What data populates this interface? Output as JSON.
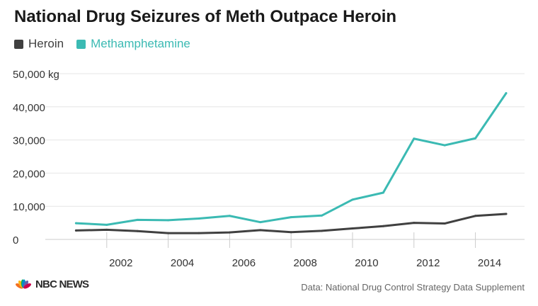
{
  "chart_data": {
    "type": "line",
    "title": "National Drug Seizures of Meth Outpace Heroin",
    "x": [
      2001,
      2002,
      2003,
      2004,
      2005,
      2006,
      2007,
      2008,
      2009,
      2010,
      2011,
      2012,
      2013,
      2014,
      2015
    ],
    "series": [
      {
        "name": "Heroin",
        "color": "#404040",
        "values": [
          2700,
          2900,
          2500,
          1900,
          1900,
          2100,
          2800,
          2200,
          2600,
          3300,
          4000,
          5000,
          4800,
          7100,
          7700
        ]
      },
      {
        "name": "Methamphetamine",
        "color": "#3bbab3",
        "values": [
          4900,
          4400,
          5900,
          5800,
          6300,
          7100,
          5200,
          6700,
          7200,
          12000,
          14100,
          30400,
          28400,
          30500,
          44100
        ]
      }
    ],
    "xticks": [
      "2002",
      "2004",
      "2006",
      "2008",
      "2010",
      "2012",
      "2014"
    ],
    "xtick_values": [
      2002,
      2004,
      2006,
      2008,
      2010,
      2012,
      2014
    ],
    "yticks": [
      "0",
      "10,000",
      "20,000",
      "30,000",
      "40,000",
      "50,000 kg"
    ],
    "ytick_values": [
      0,
      10000,
      20000,
      30000,
      40000,
      50000
    ],
    "xlim": [
      2000,
      2015.6
    ],
    "ylim": [
      0,
      50000
    ],
    "xlabel": "",
    "ylabel": "",
    "grid": true,
    "legend_position": "top-left"
  },
  "footer": {
    "logo_text": "NBC NEWS",
    "source": "Data: National Drug Control Strategy Data Supplement"
  },
  "colors": {
    "grid": "#e6e6e6",
    "axis": "#cccccc",
    "text": "#333333",
    "peacock": [
      "#f37021",
      "#fcb711",
      "#0db14b",
      "#0089d0",
      "#6460aa",
      "#cc004c"
    ]
  },
  "icons": {
    "logo": "nbc-peacock-icon"
  }
}
